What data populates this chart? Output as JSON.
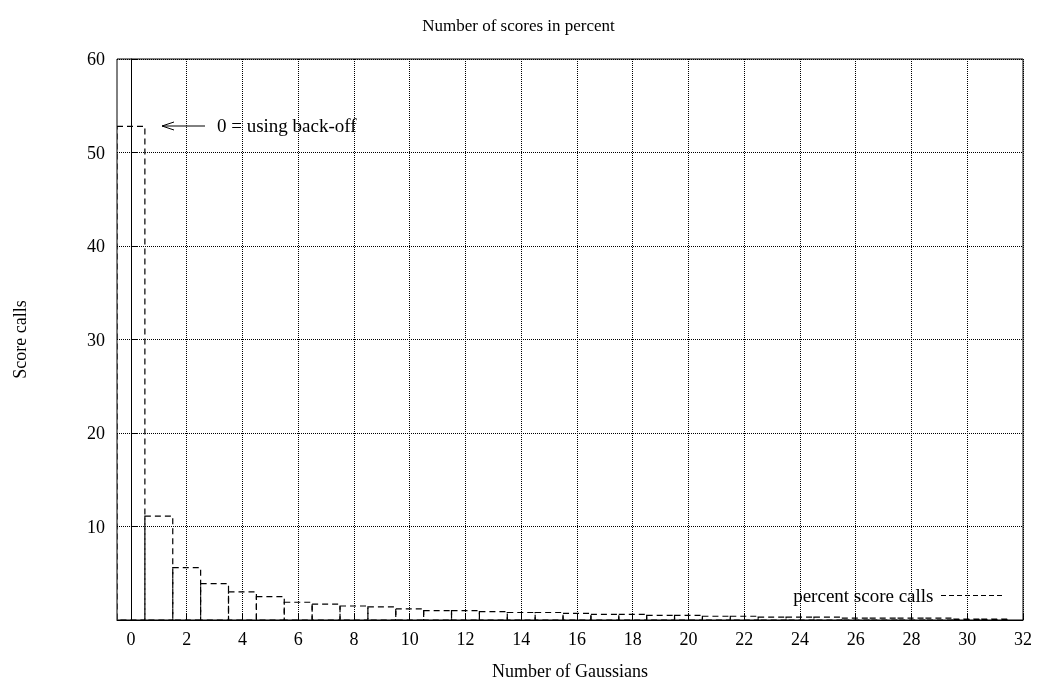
{
  "chart_data": {
    "type": "bar",
    "title": "Number of scores in percent",
    "xlabel": "Number of Gaussians",
    "ylabel": "Score calls",
    "x": [
      0,
      1,
      2,
      3,
      4,
      5,
      6,
      7,
      8,
      9,
      10,
      11,
      12,
      13,
      14,
      15,
      16,
      17,
      18,
      19,
      20,
      21,
      22,
      23,
      24,
      25,
      26,
      27,
      28,
      29,
      30,
      31
    ],
    "series": [
      {
        "name": "percent score calls",
        "color": "#000000",
        "values": [
          52.8,
          11.1,
          5.6,
          3.9,
          3.0,
          2.5,
          1.9,
          1.7,
          1.5,
          1.4,
          1.2,
          1.0,
          1.0,
          0.9,
          0.8,
          0.8,
          0.7,
          0.6,
          0.6,
          0.5,
          0.5,
          0.4,
          0.4,
          0.3,
          0.3,
          0.3,
          0.2,
          0.2,
          0.2,
          0.2,
          0.1,
          0.1
        ]
      }
    ],
    "xlim": [
      -0.5,
      32
    ],
    "xticks": [
      0,
      2,
      4,
      6,
      8,
      10,
      12,
      14,
      16,
      18,
      20,
      22,
      24,
      26,
      28,
      30,
      32
    ],
    "ylim": [
      0,
      60
    ],
    "yticks": [
      {
        "value": 0,
        "label": null
      },
      10,
      20,
      30,
      40,
      50,
      60
    ],
    "annotations": [
      "0 = using back-off"
    ],
    "grid": true,
    "legend": "bottom right",
    "line_style": "dashed"
  }
}
